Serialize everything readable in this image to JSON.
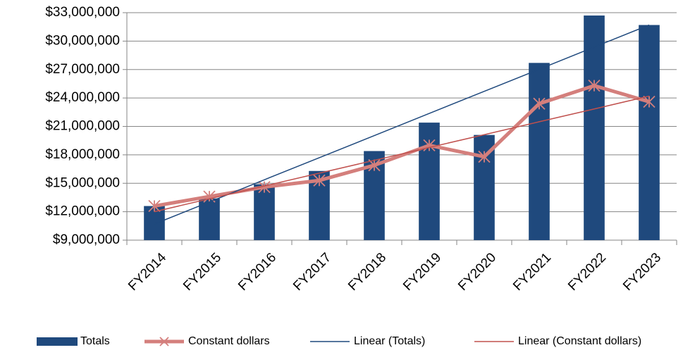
{
  "chart_data": {
    "type": "bar",
    "categories": [
      "FY2014",
      "FY2015",
      "FY2016",
      "FY2017",
      "FY2018",
      "FY2019",
      "FY2020",
      "FY2021",
      "FY2022",
      "FY2023"
    ],
    "series": [
      {
        "name": "Totals",
        "type": "bar",
        "color": "#1f497d",
        "values": [
          12600000,
          13400000,
          14900000,
          16300000,
          18400000,
          21400000,
          20100000,
          27700000,
          32700000,
          31700000
        ]
      },
      {
        "name": "Constant dollars",
        "type": "line",
        "marker": "asterisk",
        "width": 5,
        "color": "#d47f7c",
        "values": [
          12600000,
          13600000,
          14600000,
          15300000,
          16900000,
          19000000,
          17800000,
          23400000,
          25300000,
          23600000
        ]
      },
      {
        "name": "Linear (Totals)",
        "type": "line",
        "width": 1.5,
        "color": "#1f497d",
        "values": [
          10700000,
          13030000,
          15370000,
          17700000,
          20030000,
          22370000,
          24700000,
          27030000,
          29370000,
          31700000
        ]
      },
      {
        "name": "Linear (Constant dollars)",
        "type": "line",
        "width": 1.5,
        "color": "#c0504d",
        "values": [
          12000000,
          13360000,
          14710000,
          16070000,
          17420000,
          18780000,
          20130000,
          21490000,
          22840000,
          24200000
        ]
      }
    ],
    "ylim": [
      9000000,
      33000000
    ],
    "yticks": [
      {
        "value": 9000000,
        "label": "$9,000,000"
      },
      {
        "value": 12000000,
        "label": "$12,000,000"
      },
      {
        "value": 15000000,
        "label": "$15,000,000"
      },
      {
        "value": 18000000,
        "label": "$18,000,000"
      },
      {
        "value": 21000000,
        "label": "$21,000,000"
      },
      {
        "value": 24000000,
        "label": "$24,000,000"
      },
      {
        "value": 27000000,
        "label": "$27,000,000"
      },
      {
        "value": 30000000,
        "label": "$30,000,000"
      },
      {
        "value": 33000000,
        "label": "$33,000,000"
      }
    ],
    "grid": true,
    "legend": "bottom"
  }
}
